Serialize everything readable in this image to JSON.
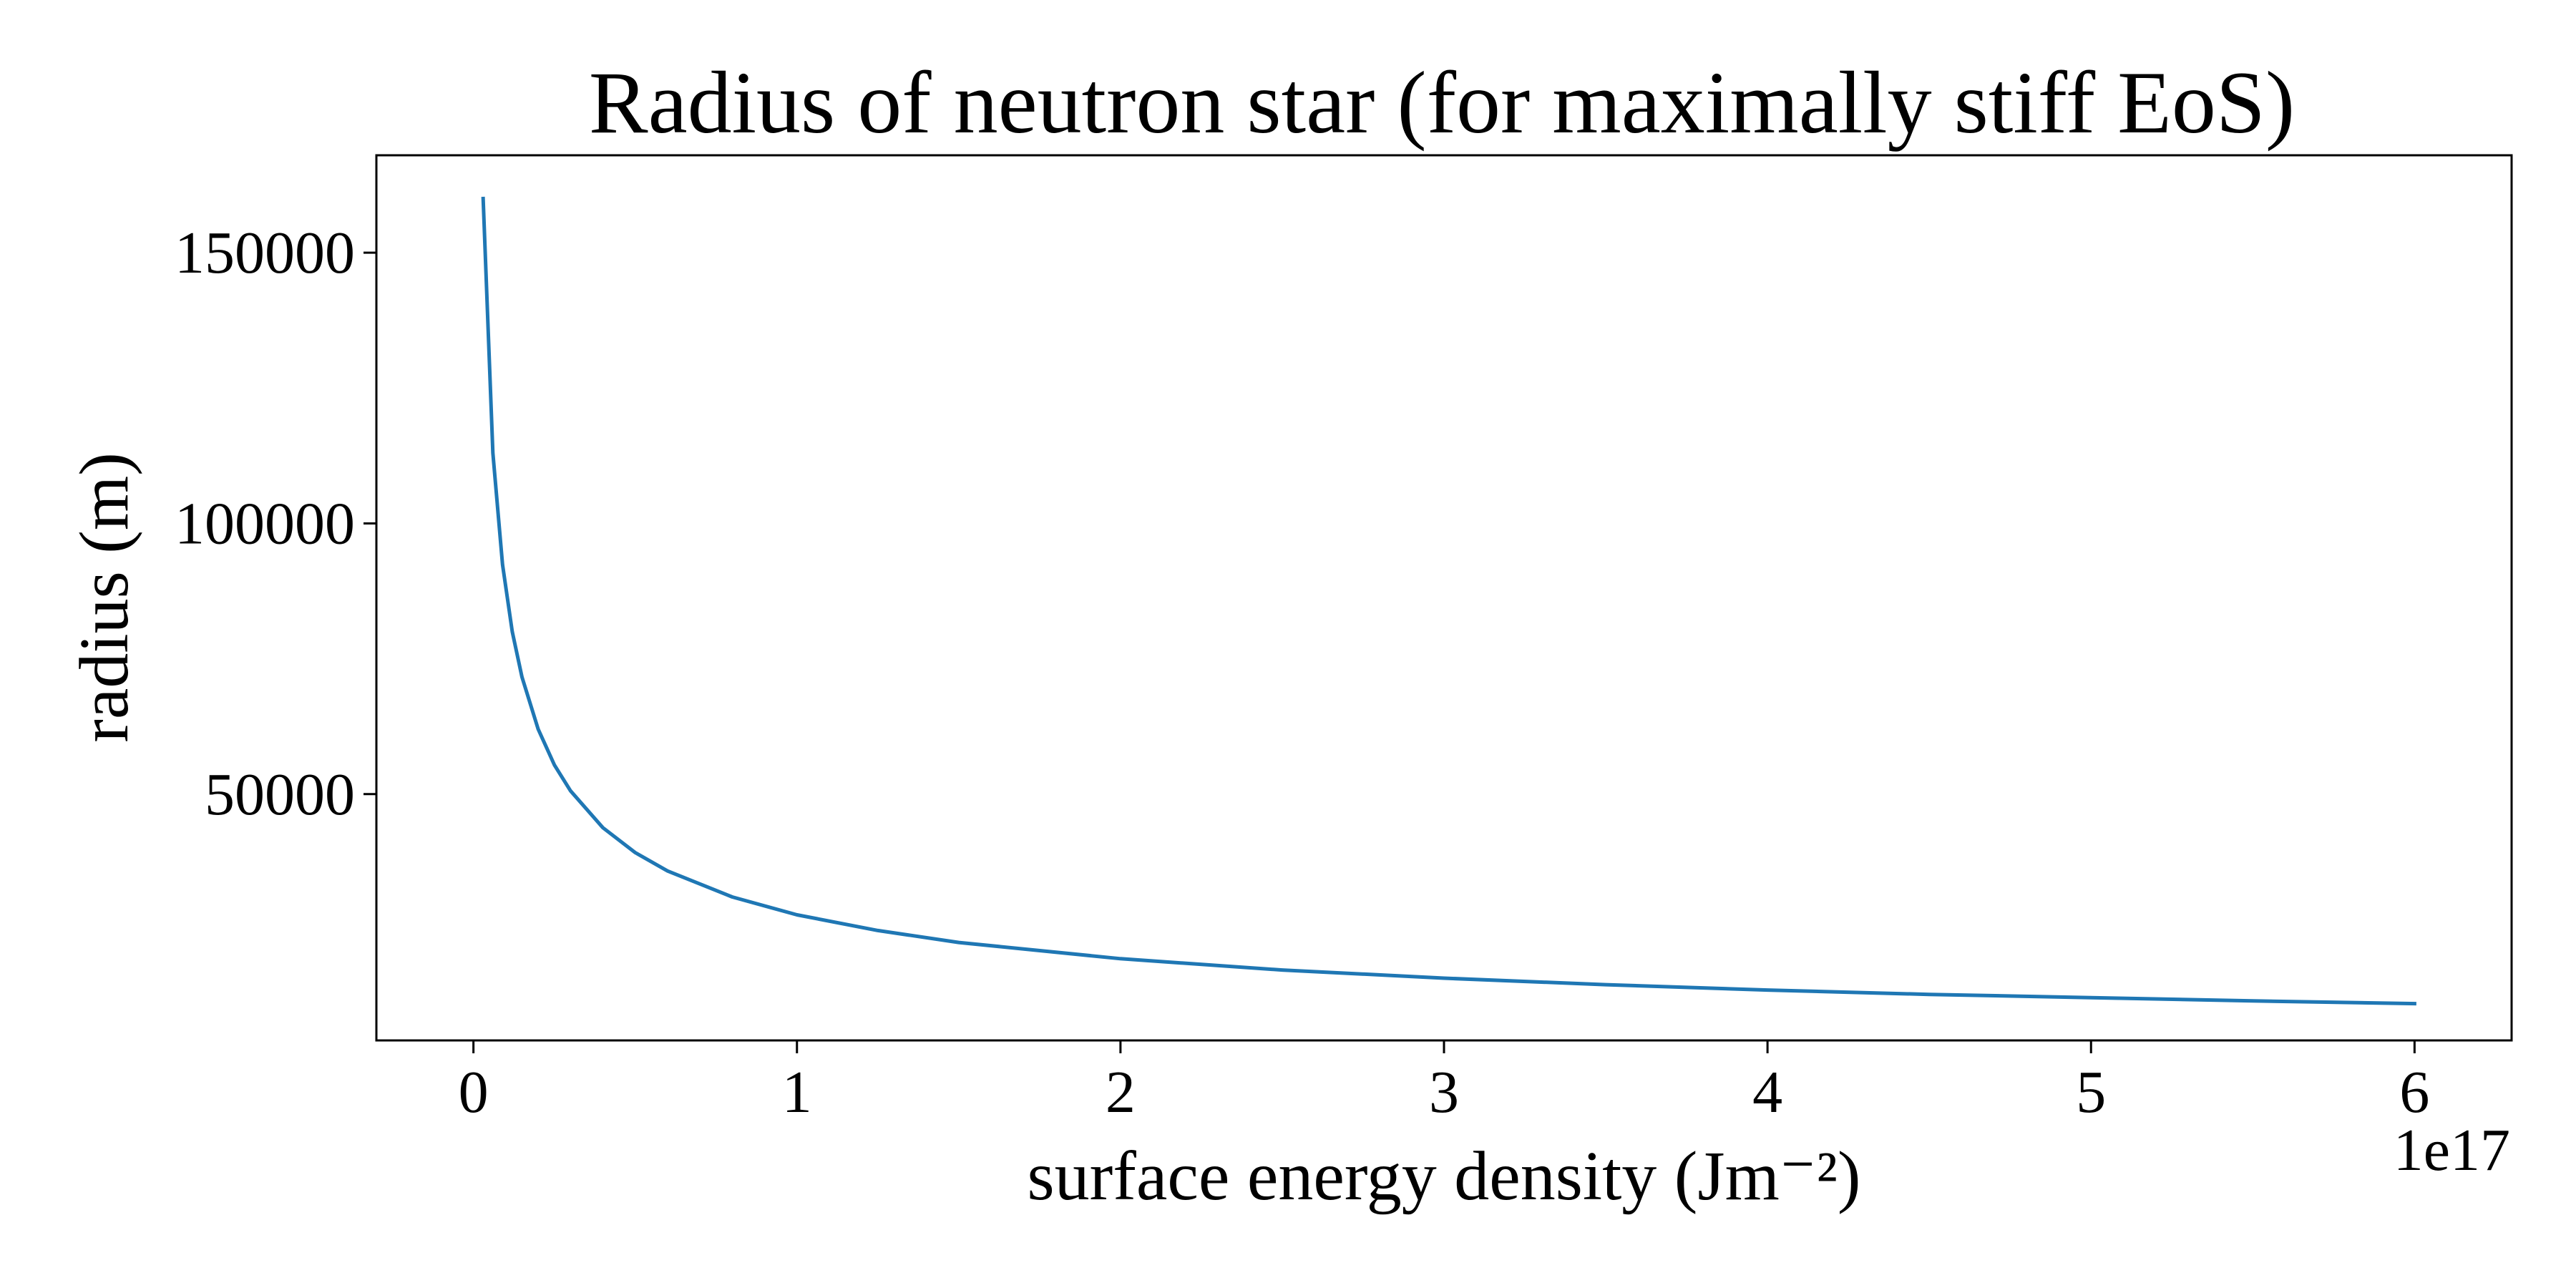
{
  "chart_data": {
    "type": "line",
    "title": "Radius of neutron star (for maximally stiff EoS)",
    "xlabel": "surface energy density (Jm⁻²)",
    "ylabel": "radius (m)",
    "x_offset_label": "1e17",
    "xlim": [
      -0.3,
      6.3
    ],
    "ylim": [
      4500,
      168000
    ],
    "x_ticks": [
      0,
      1,
      2,
      3,
      4,
      5,
      6
    ],
    "x_tick_labels": [
      "0",
      "1",
      "2",
      "3",
      "4",
      "5",
      "6"
    ],
    "y_ticks": [
      50000,
      100000,
      150000
    ],
    "y_tick_labels": [
      "50000",
      "100000",
      "150000"
    ],
    "grid": false,
    "series": [
      {
        "color": "#1f77b4",
        "x": [
          0.03,
          0.06,
          0.09,
          0.12,
          0.15,
          0.2,
          0.25,
          0.3,
          0.4,
          0.5,
          0.6,
          0.8,
          1.0,
          1.25,
          1.5,
          2.0,
          2.5,
          3.0,
          3.5,
          4.0,
          4.5,
          5.0,
          5.5,
          6.0
        ],
        "y": [
          160000,
          113000,
          92400,
          80000,
          71600,
          62000,
          55400,
          50600,
          43800,
          39200,
          35800,
          31000,
          27700,
          24800,
          22600,
          19600,
          17500,
          16000,
          14800,
          13800,
          13000,
          12400,
          11800,
          11300
        ]
      }
    ]
  }
}
